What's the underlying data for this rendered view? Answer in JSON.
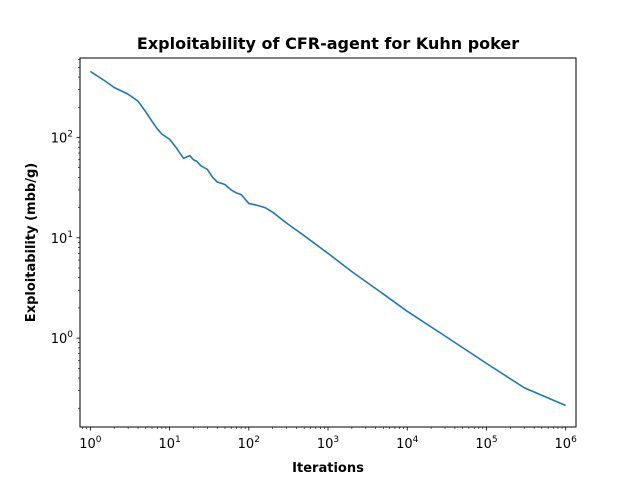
{
  "chart_data": {
    "type": "line",
    "title": "Exploitability of CFR-agent for Kuhn poker",
    "xlabel": "Iterations",
    "ylabel": "Exploitability (mbb/g)",
    "xscale": "log",
    "yscale": "log",
    "xlim": [
      0.74,
      1350000
    ],
    "ylim": [
      0.13,
      620
    ],
    "grid": false,
    "x_ticks": [
      {
        "value": 1,
        "base": "10",
        "exp": "0"
      },
      {
        "value": 10,
        "base": "10",
        "exp": "1"
      },
      {
        "value": 100,
        "base": "10",
        "exp": "2"
      },
      {
        "value": 1000,
        "base": "10",
        "exp": "3"
      },
      {
        "value": 10000,
        "base": "10",
        "exp": "4"
      },
      {
        "value": 100000,
        "base": "10",
        "exp": "5"
      },
      {
        "value": 1000000,
        "base": "10",
        "exp": "6"
      }
    ],
    "y_ticks": [
      {
        "value": 1,
        "base": "10",
        "exp": "0"
      },
      {
        "value": 10,
        "base": "10",
        "exp": "1"
      },
      {
        "value": 100,
        "base": "10",
        "exp": "2"
      }
    ],
    "series": [
      {
        "color": "#1f77b4",
        "x": [
          1,
          1.5,
          2,
          3,
          4,
          5,
          6,
          7,
          8,
          10,
          12,
          15,
          18,
          20,
          22,
          25,
          30,
          35,
          40,
          50,
          60,
          70,
          80,
          100,
          130,
          160,
          200,
          300,
          500,
          1000,
          2000,
          5000,
          10000,
          30000,
          100000,
          300000,
          1000000
        ],
        "y": [
          455,
          370,
          315,
          270,
          230,
          180,
          145,
          122,
          108,
          96,
          80,
          62,
          66,
          60,
          58,
          52,
          48,
          40,
          36,
          34,
          30,
          28,
          27,
          22,
          21,
          20,
          18,
          14,
          10.5,
          7.0,
          4.6,
          2.75,
          1.85,
          1.05,
          0.56,
          0.32,
          0.213
        ]
      }
    ]
  }
}
